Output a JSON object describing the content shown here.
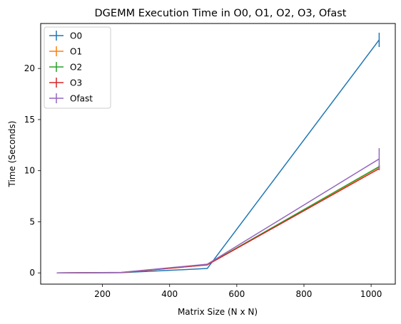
{
  "chart_data": {
    "type": "line",
    "title": "DGEMM Execution Time in O0, O1, O2, O3, Ofast",
    "xlabel": "Matrix Size (N x N)",
    "ylabel": "Time (Seconds)",
    "xlim": [
      16,
      1072
    ],
    "ylim": [
      -1.1,
      24.4
    ],
    "xticks": [
      200,
      400,
      600,
      800,
      1000
    ],
    "yticks": [
      0,
      5,
      10,
      15,
      20
    ],
    "xtick_labels": [
      "200",
      "400",
      "600",
      "800",
      "1000"
    ],
    "ytick_labels": [
      "0",
      "5",
      "10",
      "15",
      "20"
    ],
    "legend_position": "upper-left",
    "x": [
      64,
      256,
      512,
      1024
    ],
    "series": [
      {
        "name": "O0",
        "color": "#1f77b4",
        "values": [
          0.0,
          0.02,
          0.43,
          22.8
        ],
        "errors": [
          0.0,
          0.0,
          0.03,
          0.7
        ]
      },
      {
        "name": "O1",
        "color": "#ff7f0e",
        "values": [
          0.0,
          0.03,
          0.79,
          10.35
        ],
        "errors": [
          0.0,
          0.0,
          0.02,
          0.15
        ]
      },
      {
        "name": "O2",
        "color": "#2ca02c",
        "values": [
          0.0,
          0.03,
          0.8,
          10.4
        ],
        "errors": [
          0.0,
          0.0,
          0.02,
          0.15
        ]
      },
      {
        "name": "O3",
        "color": "#d62728",
        "values": [
          0.0,
          0.03,
          0.78,
          10.2
        ],
        "errors": [
          0.0,
          0.0,
          0.02,
          0.15
        ]
      },
      {
        "name": "Ofast",
        "color": "#9467bd",
        "values": [
          0.0,
          0.05,
          0.85,
          11.15
        ],
        "errors": [
          0.0,
          0.0,
          0.02,
          1.05
        ]
      }
    ]
  }
}
